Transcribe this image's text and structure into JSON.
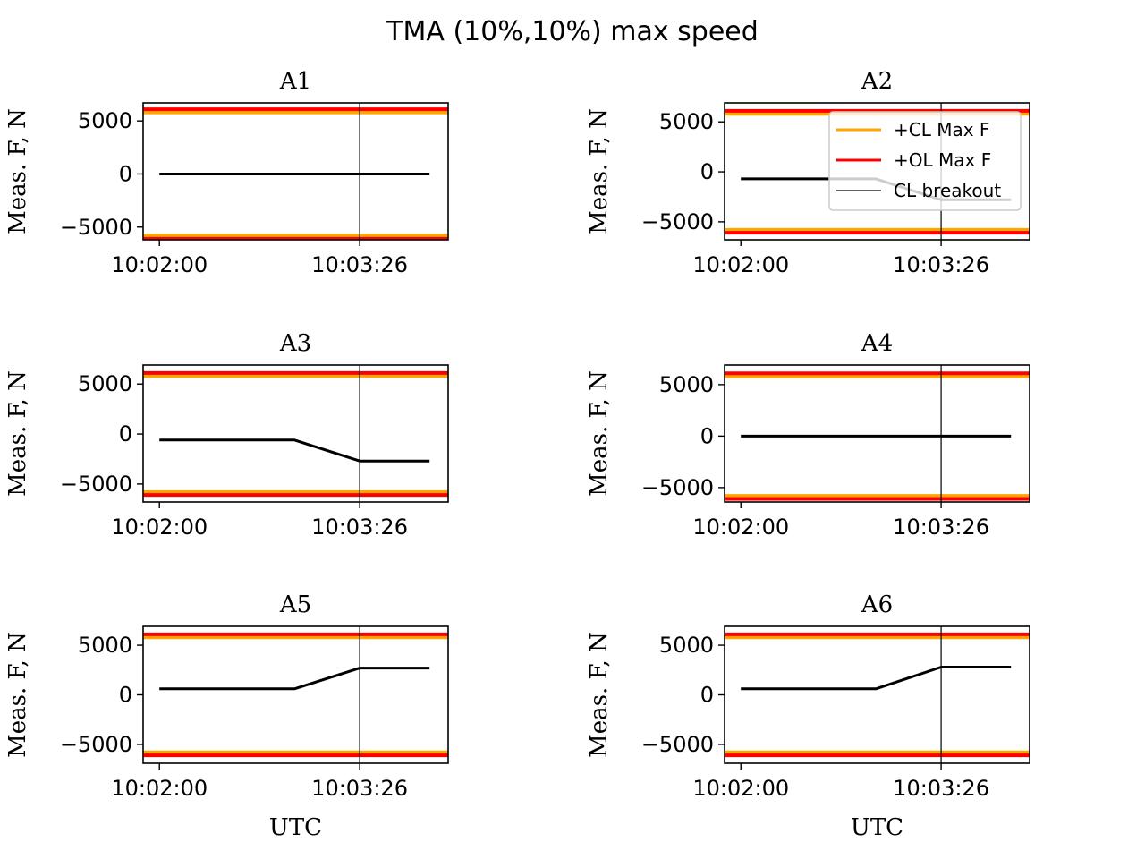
{
  "figure": {
    "title": "TMA (10%,10%) max speed"
  },
  "legend": {
    "placement": "upper-right of A2",
    "entries": [
      {
        "label": "+CL Max F",
        "color": "#ffa500"
      },
      {
        "label": "+OL Max F",
        "color": "#ff0000"
      },
      {
        "label": "CL breakout",
        "color": "#000000"
      }
    ]
  },
  "chart_data": [
    {
      "type": "line",
      "title": "A1",
      "xlabel": "",
      "ylabel": "Meas. F, N",
      "xlim": [
        "10:01:53",
        "10:04:04"
      ],
      "ylim": [
        -6200,
        6700
      ],
      "x_ticks": [
        "10:02:00",
        "10:03:26"
      ],
      "y_ticks": [
        5000,
        0,
        -5000
      ],
      "limits": {
        "cl_max": 5800,
        "ol_max": 6100
      },
      "breakout": "10:03:26",
      "series": [
        {
          "color": "#000000",
          "x": [
            "10:02:00",
            "10:03:26",
            "10:03:30",
            "10:03:56"
          ],
          "y": [
            0,
            0,
            0,
            0
          ]
        }
      ]
    },
    {
      "type": "line",
      "title": "A2",
      "xlabel": "",
      "ylabel": "Meas. F, N",
      "xlim": [
        "10:01:53",
        "10:04:04"
      ],
      "ylim": [
        -6800,
        6900
      ],
      "x_ticks": [
        "10:02:00",
        "10:03:26"
      ],
      "y_ticks": [
        5000,
        0,
        -5000
      ],
      "limits": {
        "cl_max": 5800,
        "ol_max": 6100
      },
      "breakout": "10:03:26",
      "series": [
        {
          "color": "#000000",
          "x": [
            "10:02:00",
            "10:02:58",
            "10:03:26",
            "10:03:56"
          ],
          "y": [
            -700,
            -700,
            -2800,
            -2800
          ]
        }
      ]
    },
    {
      "type": "line",
      "title": "A3",
      "xlabel": "",
      "ylabel": "Meas. F, N",
      "xlim": [
        "10:01:53",
        "10:04:04"
      ],
      "ylim": [
        -6800,
        6900
      ],
      "x_ticks": [
        "10:02:00",
        "10:03:26"
      ],
      "y_ticks": [
        5000,
        0,
        -5000
      ],
      "limits": {
        "cl_max": 5800,
        "ol_max": 6100
      },
      "breakout": "10:03:26",
      "series": [
        {
          "color": "#000000",
          "x": [
            "10:02:00",
            "10:02:58",
            "10:03:26",
            "10:03:56"
          ],
          "y": [
            -600,
            -600,
            -2700,
            -2700
          ]
        }
      ]
    },
    {
      "type": "line",
      "title": "A4",
      "xlabel": "",
      "ylabel": "Meas. F, N",
      "xlim": [
        "10:01:53",
        "10:04:04"
      ],
      "ylim": [
        -6400,
        6900
      ],
      "x_ticks": [
        "10:02:00",
        "10:03:26"
      ],
      "y_ticks": [
        5000,
        0,
        -5000
      ],
      "limits": {
        "cl_max": 5800,
        "ol_max": 6100
      },
      "breakout": "10:03:26",
      "series": [
        {
          "color": "#000000",
          "x": [
            "10:02:00",
            "10:03:26",
            "10:03:30",
            "10:03:56"
          ],
          "y": [
            0,
            0,
            0,
            0
          ]
        }
      ]
    },
    {
      "type": "line",
      "title": "A5",
      "xlabel": "UTC",
      "ylabel": "Meas. F, N",
      "xlim": [
        "10:01:53",
        "10:04:04"
      ],
      "ylim": [
        -6900,
        6900
      ],
      "x_ticks": [
        "10:02:00",
        "10:03:26"
      ],
      "y_ticks": [
        5000,
        0,
        -5000
      ],
      "limits": {
        "cl_max": 5800,
        "ol_max": 6100
      },
      "breakout": "10:03:26",
      "series": [
        {
          "color": "#000000",
          "x": [
            "10:02:00",
            "10:02:58",
            "10:03:26",
            "10:03:56"
          ],
          "y": [
            600,
            600,
            2700,
            2700
          ]
        }
      ]
    },
    {
      "type": "line",
      "title": "A6",
      "xlabel": "UTC",
      "ylabel": "Meas. F, N",
      "xlim": [
        "10:01:53",
        "10:04:04"
      ],
      "ylim": [
        -6900,
        6900
      ],
      "x_ticks": [
        "10:02:00",
        "10:03:26"
      ],
      "y_ticks": [
        5000,
        0,
        -5000
      ],
      "limits": {
        "cl_max": 5800,
        "ol_max": 6100
      },
      "breakout": "10:03:26",
      "series": [
        {
          "color": "#000000",
          "x": [
            "10:02:00",
            "10:02:58",
            "10:03:26",
            "10:03:56"
          ],
          "y": [
            600,
            600,
            2800,
            2800
          ]
        }
      ]
    }
  ]
}
